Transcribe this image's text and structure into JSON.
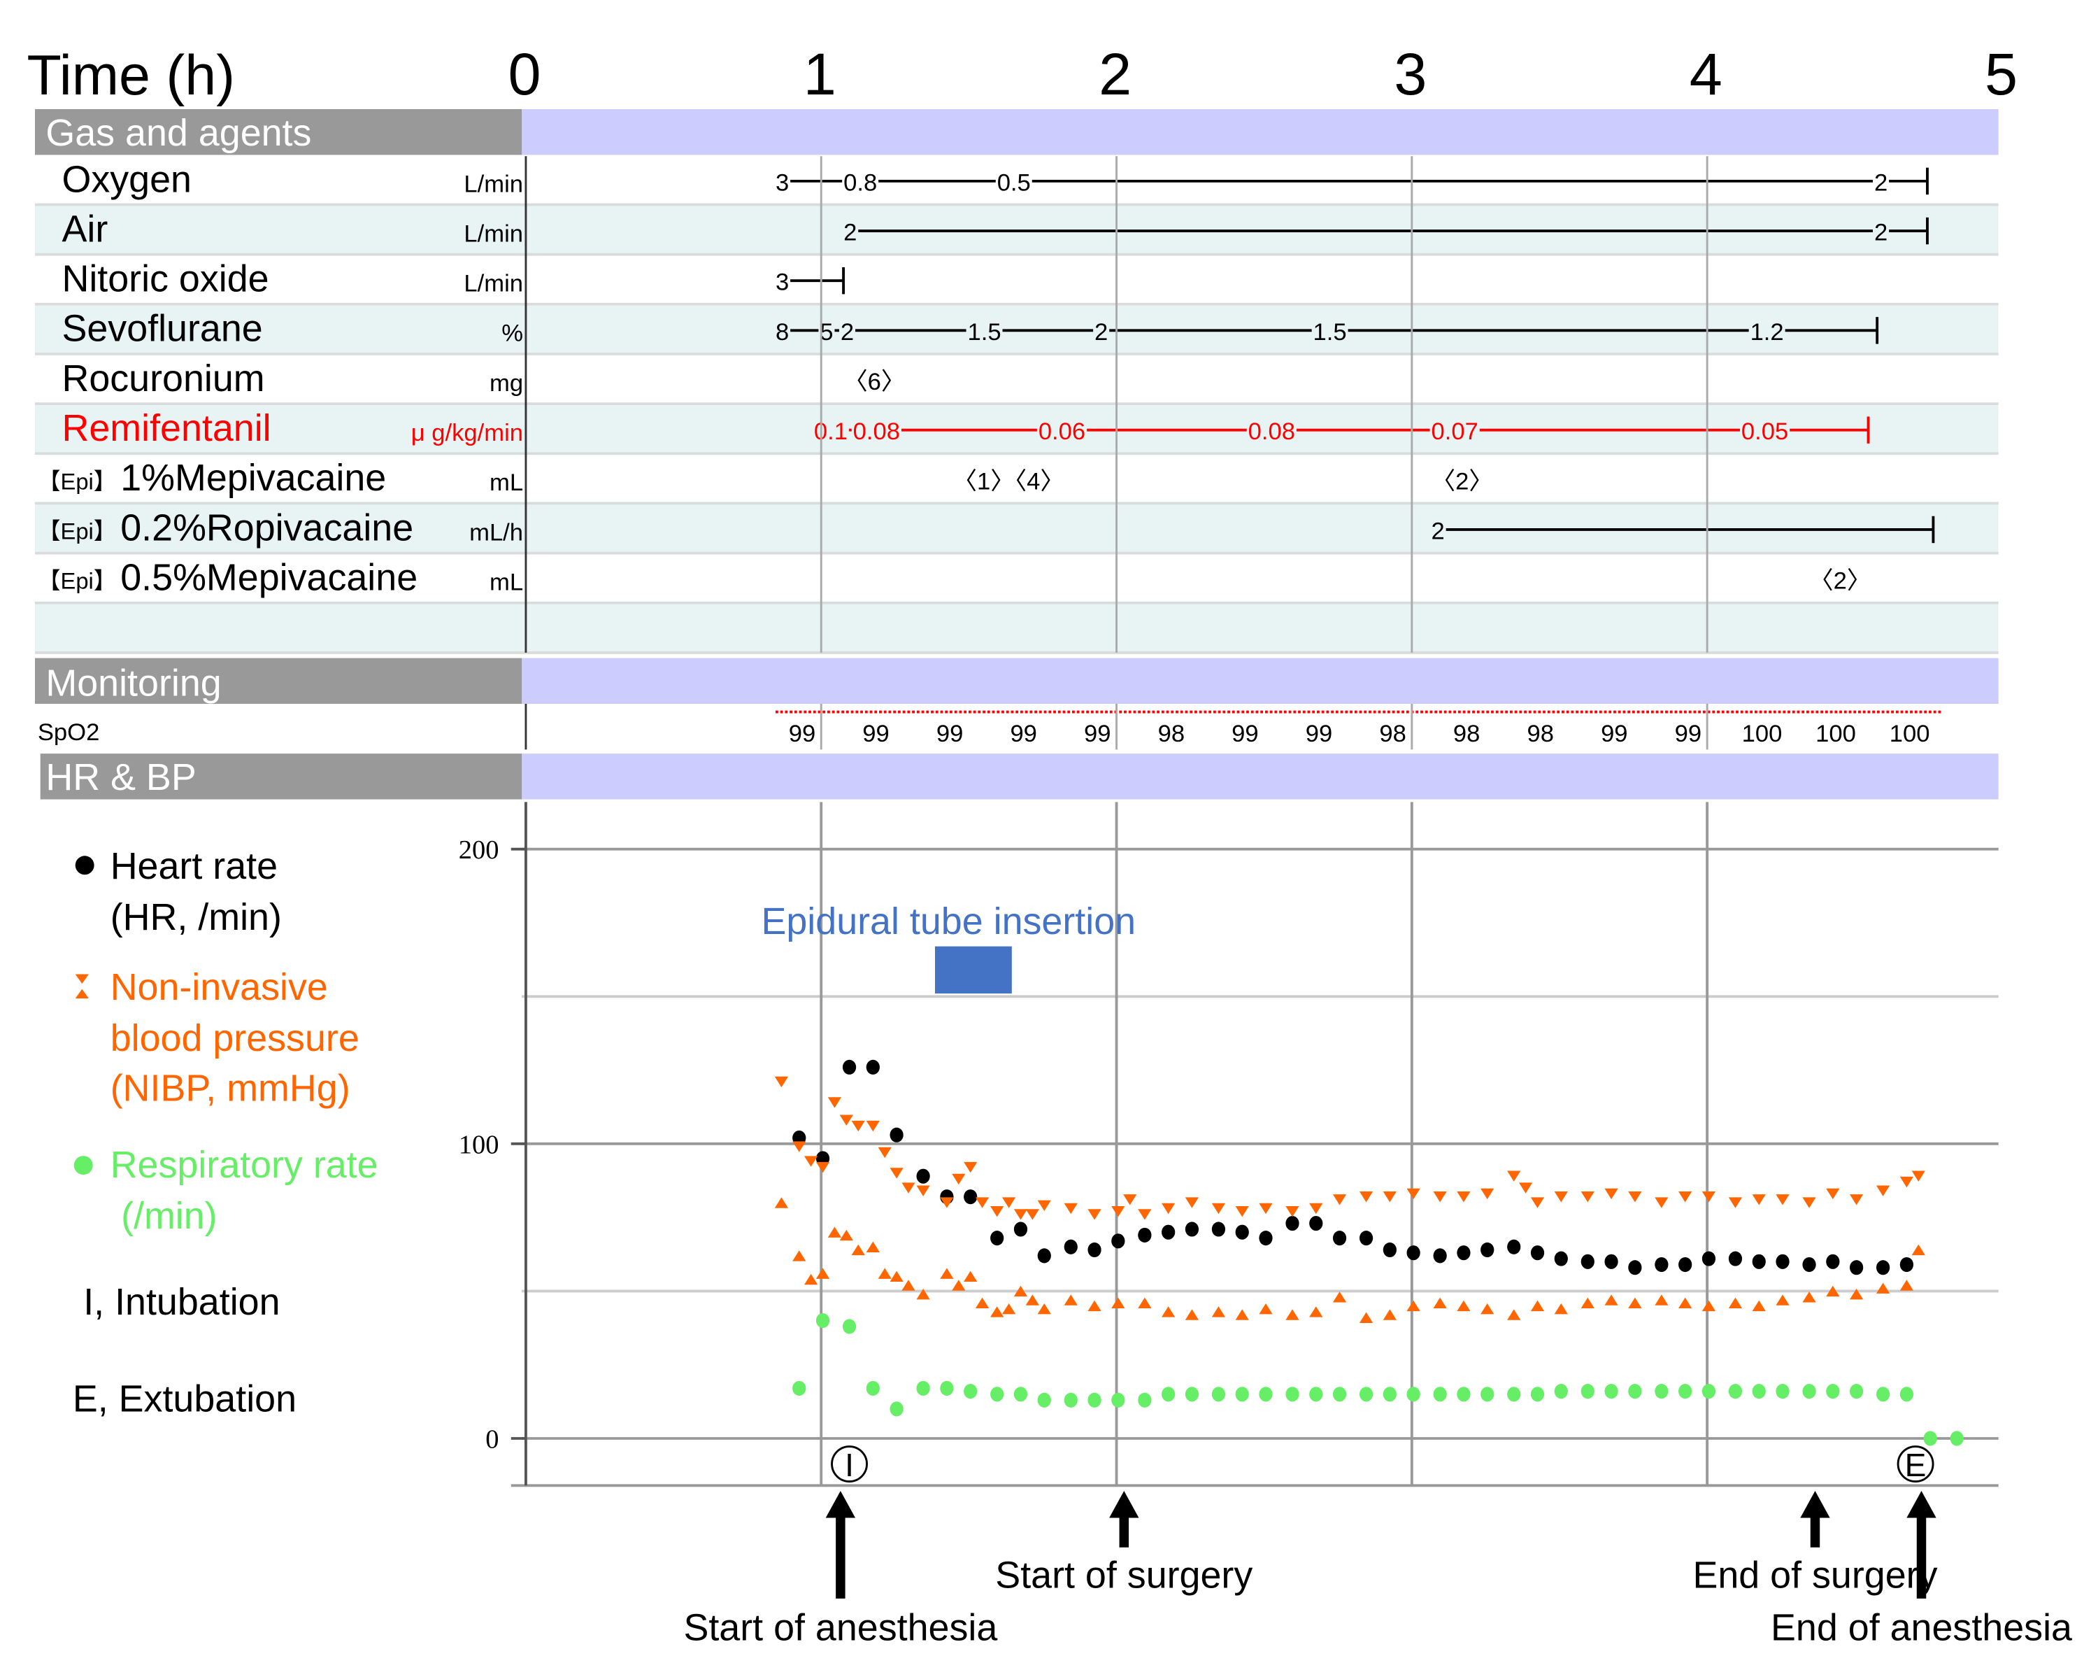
{
  "header": {
    "time_label": "Time (h)",
    "hour_ticks": [
      "0",
      "1",
      "2",
      "3",
      "4",
      "5"
    ]
  },
  "sections": {
    "gas": "Gas and agents",
    "monitoring": "Monitoring",
    "hrbp": "HR & BP"
  },
  "colors": {
    "section_gray": "#999999",
    "section_band": "#CCCCFF",
    "row_alt": "#E8F4F4",
    "remifentanil": "#FF0000",
    "nibp": "#FF6600",
    "rr": "#66EE66",
    "hr": "#000000",
    "epidural": "#4472C4",
    "spo2_line": "#FF0000"
  },
  "gas_rows": [
    {
      "label": "Oxygen",
      "unit": "L/min",
      "color": "#000000",
      "events": [
        {
          "t": 0.85,
          "v": "3"
        },
        {
          "t": 1.08,
          "v": "0.8"
        },
        {
          "t": 1.6,
          "v": "0.5"
        },
        {
          "t": 4.57,
          "v": "2"
        }
      ],
      "end": 4.75
    },
    {
      "label": "Air",
      "unit": "L/min",
      "color": "#000000",
      "events": [
        {
          "t": 1.08,
          "v": "2"
        },
        {
          "t": 4.57,
          "v": "2"
        }
      ],
      "end": 4.75
    },
    {
      "label": "Nitoric oxide",
      "unit": "L/min",
      "color": "#000000",
      "events": [
        {
          "t": 0.85,
          "v": "3"
        }
      ],
      "end": 1.08
    },
    {
      "label": "Sevoflurane",
      "unit": "%",
      "color": "#000000",
      "events": [
        {
          "t": 0.85,
          "v": "8"
        },
        {
          "t": 1.0,
          "v": "5"
        },
        {
          "t": 1.07,
          "v": "2"
        },
        {
          "t": 1.5,
          "v": "1.5"
        },
        {
          "t": 1.93,
          "v": "2"
        },
        {
          "t": 2.67,
          "v": "1.5"
        },
        {
          "t": 4.15,
          "v": "1.2"
        }
      ],
      "end": 4.58
    },
    {
      "label": "Rocuronium",
      "unit": "mg",
      "color": "#000000",
      "boluses": [
        {
          "t": 1.08,
          "v": "〈6〉"
        }
      ]
    },
    {
      "label": "Remifentanil",
      "unit": "μ g/kg/min",
      "color": "#FF0000",
      "events": [
        {
          "t": 0.98,
          "v": "0.1"
        },
        {
          "t": 1.05,
          "v": "0.08"
        },
        {
          "t": 1.74,
          "v": "0.06"
        },
        {
          "t": 2.45,
          "v": "0.08"
        },
        {
          "t": 3.07,
          "v": "0.07"
        },
        {
          "t": 4.12,
          "v": "0.05"
        }
      ],
      "end": 4.55
    },
    {
      "label": "1%Mepivacaine",
      "prefix": "【Epi】",
      "unit": "mL",
      "color": "#000000",
      "boluses": [
        {
          "t": 1.45,
          "v": "〈1〉〈4〉"
        },
        {
          "t": 3.07,
          "v": "〈2〉"
        }
      ]
    },
    {
      "label": "0.2%Ropivacaine",
      "prefix": "【Epi】",
      "unit": "mL/h",
      "color": "#000000",
      "events": [
        {
          "t": 3.07,
          "v": "2"
        }
      ],
      "end": 4.77
    },
    {
      "label": "0.5%Mepivacaine",
      "prefix": "【Epi】",
      "unit": "mL",
      "color": "#000000",
      "boluses": [
        {
          "t": 4.35,
          "v": "〈2〉"
        }
      ]
    },
    {
      "label": "",
      "unit": ""
    }
  ],
  "spo2": {
    "label": "SpO2",
    "times": [
      0.94,
      1.19,
      1.44,
      1.69,
      1.94,
      2.19,
      2.44,
      2.69,
      2.94,
      3.19,
      3.44,
      3.69,
      3.94,
      4.19,
      4.44,
      4.69
    ],
    "values": [
      "99",
      "99",
      "99",
      "99",
      "99",
      "98",
      "99",
      "99",
      "98",
      "98",
      "98",
      "99",
      "99",
      "100",
      "100",
      "100"
    ],
    "line_start": 0.85,
    "line_end": 4.8
  },
  "chart_data": {
    "type": "scatter",
    "xlabel": "Time (h)",
    "xlim": [
      0,
      5
    ],
    "ylim": [
      0,
      200
    ],
    "y_ticks": [
      "0",
      "100",
      "200"
    ],
    "grid": true,
    "series": [
      {
        "name": "Heart rate (HR, /min)",
        "marker": "dot",
        "color": "#000000",
        "points": [
          [
            0.93,
            102
          ],
          [
            1.01,
            95
          ],
          [
            1.1,
            126
          ],
          [
            1.18,
            126
          ],
          [
            1.26,
            103
          ],
          [
            1.35,
            89
          ],
          [
            1.43,
            82
          ],
          [
            1.51,
            82
          ],
          [
            1.6,
            68
          ],
          [
            1.68,
            71
          ],
          [
            1.76,
            62
          ],
          [
            1.85,
            65
          ],
          [
            1.93,
            64
          ],
          [
            2.01,
            67
          ],
          [
            2.1,
            69
          ],
          [
            2.18,
            70
          ],
          [
            2.26,
            71
          ],
          [
            2.35,
            71
          ],
          [
            2.43,
            70
          ],
          [
            2.51,
            68
          ],
          [
            2.6,
            73
          ],
          [
            2.68,
            73
          ],
          [
            2.76,
            68
          ],
          [
            2.85,
            68
          ],
          [
            2.93,
            64
          ],
          [
            3.01,
            63
          ],
          [
            3.1,
            62
          ],
          [
            3.18,
            63
          ],
          [
            3.26,
            64
          ],
          [
            3.35,
            65
          ],
          [
            3.43,
            63
          ],
          [
            3.51,
            61
          ],
          [
            3.6,
            60
          ],
          [
            3.68,
            60
          ],
          [
            3.76,
            58
          ],
          [
            3.85,
            59
          ],
          [
            3.93,
            59
          ],
          [
            4.01,
            61
          ],
          [
            4.1,
            61
          ],
          [
            4.18,
            60
          ],
          [
            4.26,
            60
          ],
          [
            4.35,
            59
          ],
          [
            4.43,
            60
          ],
          [
            4.51,
            58
          ],
          [
            4.6,
            58
          ],
          [
            4.68,
            59
          ]
        ]
      },
      {
        "name": "NIBP systolic",
        "marker": "down",
        "color": "#FF6600",
        "points": [
          [
            0.87,
            121
          ],
          [
            0.93,
            99
          ],
          [
            0.97,
            94
          ],
          [
            1.01,
            92
          ],
          [
            1.05,
            114
          ],
          [
            1.09,
            108
          ],
          [
            1.13,
            106
          ],
          [
            1.18,
            106
          ],
          [
            1.22,
            97
          ],
          [
            1.26,
            90
          ],
          [
            1.3,
            85
          ],
          [
            1.35,
            84
          ],
          [
            1.43,
            80
          ],
          [
            1.47,
            88
          ],
          [
            1.51,
            92
          ],
          [
            1.55,
            80
          ],
          [
            1.6,
            77
          ],
          [
            1.64,
            80
          ],
          [
            1.68,
            76
          ],
          [
            1.72,
            76
          ],
          [
            1.76,
            79
          ],
          [
            1.85,
            78
          ],
          [
            1.93,
            76
          ],
          [
            2.01,
            77
          ],
          [
            2.05,
            81
          ],
          [
            2.1,
            76
          ],
          [
            2.18,
            78
          ],
          [
            2.26,
            80
          ],
          [
            2.35,
            78
          ],
          [
            2.43,
            77
          ],
          [
            2.51,
            78
          ],
          [
            2.6,
            77
          ],
          [
            2.68,
            78
          ],
          [
            2.76,
            81
          ],
          [
            2.85,
            82
          ],
          [
            2.93,
            82
          ],
          [
            3.01,
            83
          ],
          [
            3.1,
            82
          ],
          [
            3.18,
            82
          ],
          [
            3.26,
            83
          ],
          [
            3.35,
            89
          ],
          [
            3.39,
            85
          ],
          [
            3.43,
            80
          ],
          [
            3.51,
            82
          ],
          [
            3.6,
            82
          ],
          [
            3.68,
            83
          ],
          [
            3.76,
            82
          ],
          [
            3.85,
            80
          ],
          [
            3.93,
            82
          ],
          [
            4.01,
            82
          ],
          [
            4.1,
            80
          ],
          [
            4.18,
            81
          ],
          [
            4.26,
            81
          ],
          [
            4.35,
            80
          ],
          [
            4.43,
            83
          ],
          [
            4.51,
            81
          ],
          [
            4.6,
            84
          ],
          [
            4.68,
            87
          ],
          [
            4.72,
            89
          ]
        ]
      },
      {
        "name": "NIBP diastolic",
        "marker": "up",
        "color": "#FF6600",
        "points": [
          [
            0.87,
            80
          ],
          [
            0.93,
            62
          ],
          [
            0.97,
            54
          ],
          [
            1.01,
            56
          ],
          [
            1.05,
            70
          ],
          [
            1.09,
            69
          ],
          [
            1.13,
            64
          ],
          [
            1.18,
            65
          ],
          [
            1.22,
            56
          ],
          [
            1.26,
            55
          ],
          [
            1.3,
            52
          ],
          [
            1.35,
            49
          ],
          [
            1.43,
            56
          ],
          [
            1.47,
            52
          ],
          [
            1.51,
            55
          ],
          [
            1.55,
            46
          ],
          [
            1.6,
            43
          ],
          [
            1.64,
            44
          ],
          [
            1.68,
            50
          ],
          [
            1.72,
            47
          ],
          [
            1.76,
            44
          ],
          [
            1.85,
            47
          ],
          [
            1.93,
            45
          ],
          [
            2.01,
            46
          ],
          [
            2.1,
            46
          ],
          [
            2.18,
            43
          ],
          [
            2.26,
            42
          ],
          [
            2.35,
            43
          ],
          [
            2.43,
            42
          ],
          [
            2.51,
            44
          ],
          [
            2.6,
            42
          ],
          [
            2.68,
            43
          ],
          [
            2.76,
            48
          ],
          [
            2.85,
            41
          ],
          [
            2.93,
            42
          ],
          [
            3.01,
            45
          ],
          [
            3.1,
            46
          ],
          [
            3.18,
            45
          ],
          [
            3.26,
            44
          ],
          [
            3.35,
            42
          ],
          [
            3.43,
            45
          ],
          [
            3.51,
            44
          ],
          [
            3.6,
            46
          ],
          [
            3.68,
            47
          ],
          [
            3.76,
            46
          ],
          [
            3.85,
            47
          ],
          [
            3.93,
            46
          ],
          [
            4.01,
            45
          ],
          [
            4.1,
            46
          ],
          [
            4.18,
            45
          ],
          [
            4.26,
            47
          ],
          [
            4.35,
            48
          ],
          [
            4.43,
            50
          ],
          [
            4.51,
            49
          ],
          [
            4.6,
            51
          ],
          [
            4.68,
            52
          ],
          [
            4.72,
            64
          ]
        ]
      },
      {
        "name": "Respiratory rate (/min)",
        "marker": "dot",
        "color": "#66EE66",
        "points": [
          [
            0.93,
            17
          ],
          [
            1.01,
            40
          ],
          [
            1.1,
            38
          ],
          [
            1.18,
            17
          ],
          [
            1.26,
            10
          ],
          [
            1.35,
            17
          ],
          [
            1.43,
            17
          ],
          [
            1.51,
            16
          ],
          [
            1.6,
            15
          ],
          [
            1.68,
            15
          ],
          [
            1.76,
            13
          ],
          [
            1.85,
            13
          ],
          [
            1.93,
            13
          ],
          [
            2.01,
            13
          ],
          [
            2.1,
            13
          ],
          [
            2.18,
            15
          ],
          [
            2.26,
            15
          ],
          [
            2.35,
            15
          ],
          [
            2.43,
            15
          ],
          [
            2.51,
            15
          ],
          [
            2.6,
            15
          ],
          [
            2.68,
            15
          ],
          [
            2.76,
            15
          ],
          [
            2.85,
            15
          ],
          [
            2.93,
            15
          ],
          [
            3.01,
            15
          ],
          [
            3.1,
            15
          ],
          [
            3.18,
            15
          ],
          [
            3.26,
            15
          ],
          [
            3.35,
            15
          ],
          [
            3.43,
            15
          ],
          [
            3.51,
            16
          ],
          [
            3.6,
            16
          ],
          [
            3.68,
            16
          ],
          [
            3.76,
            16
          ],
          [
            3.85,
            16
          ],
          [
            3.93,
            16
          ],
          [
            4.01,
            16
          ],
          [
            4.1,
            16
          ],
          [
            4.18,
            16
          ],
          [
            4.26,
            16
          ],
          [
            4.35,
            16
          ],
          [
            4.43,
            16
          ],
          [
            4.51,
            16
          ],
          [
            4.6,
            15
          ],
          [
            4.68,
            15
          ],
          [
            4.76,
            0
          ],
          [
            4.85,
            0
          ]
        ]
      }
    ],
    "annotations": {
      "epidural": {
        "text": "Epidural tube insertion",
        "t_start": 1.39,
        "t_end": 1.65,
        "v_low": 151,
        "v_high": 167
      },
      "intubation_marker": {
        "text": "I",
        "t": 1.1
      },
      "extubation_marker": {
        "text": "E",
        "t": 4.71
      },
      "events": [
        {
          "text": "Start of anesthesia",
          "t": 1.07
        },
        {
          "text": "Start of surgery",
          "t": 2.03
        },
        {
          "text": "End of surgery",
          "t": 4.37
        },
        {
          "text": "End of anesthesia",
          "t": 4.73
        }
      ]
    }
  },
  "legend": {
    "hr": [
      "Heart rate",
      "(HR, /min)"
    ],
    "nibp": [
      "Non-invasive",
      "blood pressure",
      "(NIBP, mmHg)"
    ],
    "rr": [
      "Respiratory rate",
      "(/min)"
    ],
    "intubation": "I, Intubation",
    "extubation": "E, Extubation"
  }
}
